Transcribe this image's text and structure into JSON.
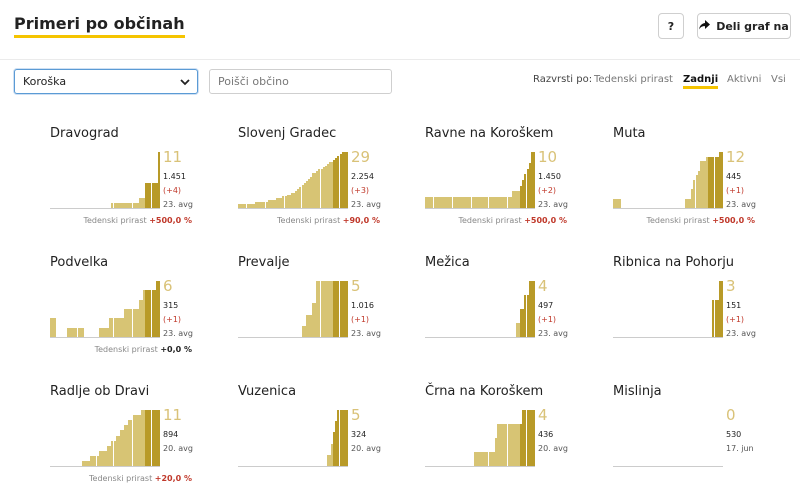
{
  "header": {
    "title": "Primeri po občinah",
    "help_label": "?",
    "share_label": "Deli graf na",
    "accent": "#f5c400"
  },
  "controls": {
    "region": "Koroška",
    "search_placeholder": "Poišči občino",
    "sort_label": "Razvrsti po:",
    "sort_options": [
      {
        "label": "Tedenski prirast",
        "active": false
      },
      {
        "label": "Zadnji",
        "active": true
      },
      {
        "label": "Aktivni",
        "active": false
      },
      {
        "label": "Vsi",
        "active": false
      }
    ]
  },
  "colors": {
    "bar": "#d7c474",
    "bar_recent": "#b89a28",
    "big_number": "#d9c278",
    "increase": "#c0392b"
  },
  "municipalities": [
    {
      "name": "Dravograd",
      "active": "11",
      "total": "1.451",
      "change": "(+4)",
      "date": "23. avg",
      "weekly_label": "Tedenski prirast",
      "weekly": "+500,0 %",
      "weekly_zero": false,
      "series": [
        0,
        0,
        0,
        0,
        0,
        0,
        0,
        0,
        0,
        0,
        0,
        0,
        0,
        0,
        0,
        0,
        0,
        0,
        0,
        0,
        0,
        0,
        0,
        0,
        0,
        0,
        0,
        0,
        0,
        1,
        1,
        1,
        1,
        1,
        1,
        1,
        1,
        1,
        1,
        1,
        1,
        1,
        2,
        2,
        2,
        5,
        5,
        5,
        5,
        5,
        5,
        11
      ]
    },
    {
      "name": "Slovenj Gradec",
      "active": "29",
      "total": "2.254",
      "change": "(+3)",
      "date": "23. avg",
      "weekly_label": "Tedenski prirast",
      "weekly": "+90,0 %",
      "weekly_zero": false,
      "series": [
        2,
        2,
        2,
        2,
        2,
        2,
        2,
        2,
        3,
        3,
        3,
        3,
        3,
        3,
        4,
        4,
        4,
        4,
        5,
        5,
        5,
        6,
        6,
        7,
        7,
        8,
        8,
        9,
        10,
        11,
        12,
        13,
        14,
        15,
        16,
        18,
        18,
        19,
        20,
        20,
        21,
        22,
        23,
        24,
        24,
        25,
        26,
        27,
        28,
        29,
        29,
        29
      ]
    },
    {
      "name": "Ravne na Koroškem",
      "active": "10",
      "total": "1.450",
      "change": "(+2)",
      "date": "23. avg",
      "weekly_label": "Tedenski prirast",
      "weekly": "+500,0 %",
      "weekly_zero": false,
      "series": [
        2,
        2,
        2,
        2,
        2,
        2,
        2,
        2,
        2,
        2,
        2,
        2,
        2,
        2,
        2,
        2,
        2,
        2,
        2,
        2,
        2,
        2,
        2,
        2,
        2,
        2,
        2,
        2,
        2,
        2,
        2,
        2,
        2,
        2,
        2,
        2,
        2,
        2,
        2,
        2,
        2,
        3,
        3,
        3,
        3,
        4,
        5,
        6,
        7,
        8,
        10,
        10
      ]
    },
    {
      "name": "Muta",
      "active": "12",
      "total": "445",
      "change": "(+1)",
      "date": "23. avg",
      "weekly_label": "Tedenski prirast",
      "weekly": "+500,0 %",
      "weekly_zero": false,
      "series": [
        2,
        2,
        2,
        2,
        0,
        0,
        0,
        0,
        0,
        0,
        0,
        0,
        0,
        0,
        0,
        0,
        0,
        0,
        0,
        0,
        0,
        0,
        0,
        0,
        0,
        0,
        0,
        0,
        0,
        0,
        0,
        0,
        0,
        0,
        2,
        2,
        2,
        4,
        6,
        7,
        8,
        10,
        10,
        10,
        11,
        11,
        11,
        11,
        11,
        11,
        12,
        12
      ]
    },
    {
      "name": "Podvelka",
      "active": "6",
      "total": "315",
      "change": "(+1)",
      "date": "23. avg",
      "weekly_label": "Tedenski prirast",
      "weekly": "+0,0 %",
      "weekly_zero": true,
      "series": [
        2,
        2,
        2,
        0,
        0,
        0,
        0,
        0,
        1,
        1,
        1,
        1,
        1,
        1,
        1,
        1,
        0,
        0,
        0,
        0,
        0,
        0,
        0,
        1,
        1,
        1,
        1,
        1,
        2,
        2,
        2,
        2,
        2,
        2,
        2,
        3,
        3,
        3,
        3,
        3,
        3,
        3,
        4,
        4,
        5,
        5,
        5,
        5,
        5,
        5,
        6,
        6
      ]
    },
    {
      "name": "Prevalje",
      "active": "5",
      "total": "1.016",
      "change": "(+1)",
      "date": "23. avg",
      "weekly_label": "",
      "weekly": "",
      "weekly_zero": false,
      "series": [
        0,
        0,
        0,
        0,
        0,
        0,
        0,
        0,
        0,
        0,
        0,
        0,
        0,
        0,
        0,
        0,
        0,
        0,
        0,
        0,
        0,
        0,
        0,
        0,
        0,
        0,
        0,
        0,
        0,
        0,
        1,
        1,
        2,
        2,
        2,
        3,
        3,
        5,
        5,
        5,
        5,
        5,
        5,
        5,
        5,
        5,
        5,
        5,
        5,
        5,
        5,
        5
      ]
    },
    {
      "name": "Mežica",
      "active": "4",
      "total": "497",
      "change": "(+1)",
      "date": "23. avg",
      "weekly_label": "",
      "weekly": "",
      "weekly_zero": false,
      "series": [
        0,
        0,
        0,
        0,
        0,
        0,
        0,
        0,
        0,
        0,
        0,
        0,
        0,
        0,
        0,
        0,
        0,
        0,
        0,
        0,
        0,
        0,
        0,
        0,
        0,
        0,
        0,
        0,
        0,
        0,
        0,
        0,
        0,
        0,
        0,
        0,
        0,
        0,
        0,
        0,
        0,
        0,
        0,
        1,
        1,
        2,
        2,
        3,
        3,
        4,
        4,
        4
      ]
    },
    {
      "name": "Ribnica na Pohorju",
      "active": "3",
      "total": "151",
      "change": "(+1)",
      "date": "23. avg",
      "weekly_label": "",
      "weekly": "",
      "weekly_zero": false,
      "series": [
        0,
        0,
        0,
        0,
        0,
        0,
        0,
        0,
        0,
        0,
        0,
        0,
        0,
        0,
        0,
        0,
        0,
        0,
        0,
        0,
        0,
        0,
        0,
        0,
        0,
        0,
        0,
        0,
        0,
        0,
        0,
        0,
        0,
        0,
        0,
        0,
        0,
        0,
        0,
        0,
        0,
        0,
        0,
        0,
        0,
        0,
        0,
        2,
        2,
        2,
        3,
        3
      ]
    },
    {
      "name": "Radlje ob Dravi",
      "active": "11",
      "total": "894",
      "change": "",
      "date": "20. avg",
      "weekly_label": "Tedenski prirast",
      "weekly": "+20,0 %",
      "weekly_zero": false,
      "series": [
        0,
        0,
        0,
        0,
        0,
        0,
        0,
        0,
        0,
        0,
        0,
        0,
        0,
        0,
        0,
        1,
        1,
        1,
        1,
        2,
        2,
        2,
        2,
        3,
        3,
        3,
        3,
        4,
        4,
        5,
        5,
        6,
        6,
        7,
        7,
        8,
        8,
        9,
        9,
        10,
        10,
        10,
        10,
        11,
        11,
        11,
        11,
        11,
        11,
        11,
        11,
        11
      ]
    },
    {
      "name": "Vuzenica",
      "active": "5",
      "total": "324",
      "change": "",
      "date": "20. avg",
      "weekly_label": "",
      "weekly": "",
      "weekly_zero": false,
      "series": [
        0,
        0,
        0,
        0,
        0,
        0,
        0,
        0,
        0,
        0,
        0,
        0,
        0,
        0,
        0,
        0,
        0,
        0,
        0,
        0,
        0,
        0,
        0,
        0,
        0,
        0,
        0,
        0,
        0,
        0,
        0,
        0,
        0,
        0,
        0,
        0,
        0,
        0,
        0,
        0,
        0,
        0,
        1,
        1,
        2,
        3,
        4,
        5,
        5,
        5,
        5,
        5
      ]
    },
    {
      "name": "Črna na Koroškem",
      "active": "4",
      "total": "436",
      "change": "",
      "date": "20. avg",
      "weekly_label": "",
      "weekly": "",
      "weekly_zero": false,
      "series": [
        0,
        0,
        0,
        0,
        0,
        0,
        0,
        0,
        0,
        0,
        0,
        0,
        0,
        0,
        0,
        0,
        0,
        0,
        0,
        0,
        0,
        0,
        0,
        1,
        1,
        1,
        1,
        1,
        1,
        1,
        1,
        1,
        1,
        2,
        3,
        3,
        3,
        3,
        3,
        3,
        3,
        3,
        3,
        3,
        3,
        3,
        4,
        4,
        4,
        4,
        4,
        4
      ]
    },
    {
      "name": "Mislinja",
      "active": "0",
      "total": "530",
      "change": "",
      "date": "17. jun",
      "weekly_label": "",
      "weekly": "",
      "weekly_zero": false,
      "series": []
    }
  ]
}
